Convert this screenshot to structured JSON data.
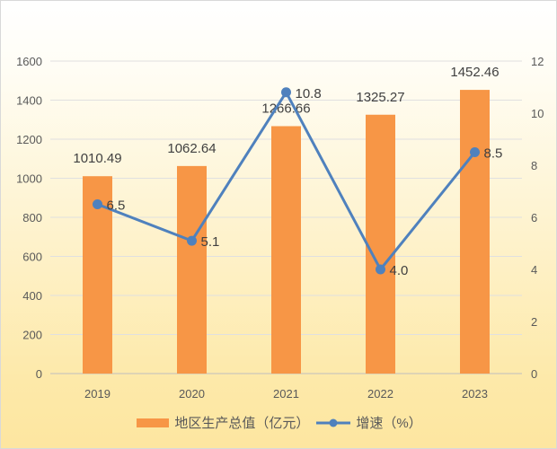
{
  "chart_data": {
    "type": "bar+line",
    "categories": [
      "2019",
      "2020",
      "2021",
      "2022",
      "2023"
    ],
    "series": [
      {
        "name": "地区生产总值（亿元）",
        "type": "bar",
        "axis": "left",
        "values": [
          1010.49,
          1062.64,
          1266.66,
          1325.27,
          1452.46
        ],
        "labels": [
          "1010.49",
          "1062.64",
          "1266.66",
          "1325.27",
          "1452.46"
        ],
        "color": "#f79646"
      },
      {
        "name": "增速（%）",
        "type": "line",
        "axis": "right",
        "values": [
          6.5,
          5.1,
          10.8,
          4.0,
          8.5
        ],
        "labels": [
          "6.5",
          "5.1",
          "10.8",
          "4.0",
          "8.5"
        ],
        "color": "#4f81bd"
      }
    ],
    "y_left": {
      "range": [
        0,
        1600
      ],
      "ticks": [
        "0",
        "200",
        "400",
        "600",
        "800",
        "1000",
        "1200",
        "1400",
        "1600"
      ]
    },
    "y_right": {
      "range": [
        0,
        12
      ],
      "ticks": [
        "0",
        "2",
        "4",
        "6",
        "8",
        "10",
        "12"
      ]
    },
    "grid": true,
    "legend": "bottom"
  }
}
